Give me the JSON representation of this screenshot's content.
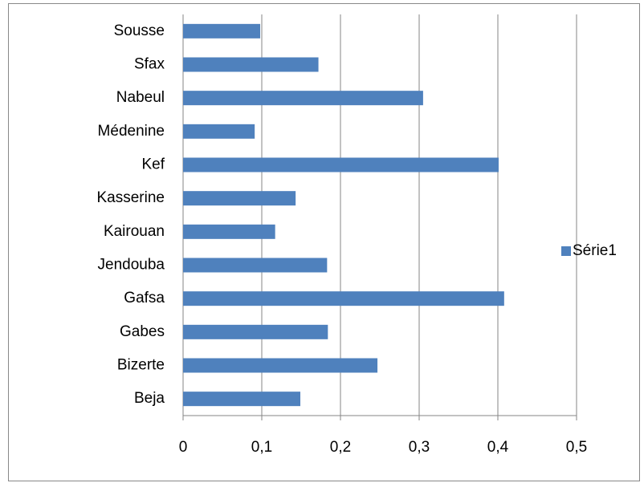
{
  "chart_data": {
    "type": "barh",
    "categories": [
      "Beja",
      "Bizerte",
      "Gabes",
      "Gafsa",
      "Jendouba",
      "Kairouan",
      "Kasserine",
      "Kef",
      "Médenine",
      "Nabeul",
      "Sfax",
      "Sousse"
    ],
    "series": [
      {
        "name": "Série1",
        "color": "#4f81bd",
        "values": [
          0.149,
          0.247,
          0.184,
          0.408,
          0.183,
          0.117,
          0.143,
          0.401,
          0.091,
          0.305,
          0.172,
          0.098
        ]
      }
    ],
    "xlim": [
      0,
      0.5
    ],
    "xticks": [
      0,
      {
        "value": 0.1,
        "label": "0,1"
      },
      {
        "value": 0.2,
        "label": "0,2"
      },
      {
        "value": 0.3,
        "label": "0,3"
      },
      {
        "value": 0.4,
        "label": "0,4"
      },
      {
        "value": 0.5,
        "label": "0,5"
      }
    ],
    "grid": true,
    "legend": "right"
  }
}
